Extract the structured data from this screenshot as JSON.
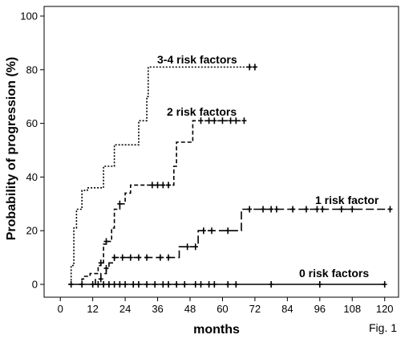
{
  "chart_data": {
    "type": "line",
    "xlabel": "months",
    "ylabel": "Probability of progression (%)",
    "xlim": [
      0,
      126
    ],
    "ylim": [
      0,
      100
    ],
    "x_ticks": [
      0,
      12,
      24,
      36,
      48,
      60,
      72,
      84,
      96,
      108,
      120
    ],
    "y_ticks": [
      0,
      20,
      40,
      60,
      80,
      100
    ],
    "figure_label": "Fig. 1",
    "grid": false,
    "series": [
      {
        "name": "3-4 risk factors",
        "dash": "dotted",
        "steps": [
          [
            3,
            0
          ],
          [
            4,
            7
          ],
          [
            5,
            21
          ],
          [
            6,
            28
          ],
          [
            8,
            35
          ],
          [
            10,
            36
          ],
          [
            15,
            36
          ],
          [
            16,
            44
          ],
          [
            19,
            44
          ],
          [
            20,
            52
          ],
          [
            28,
            52
          ],
          [
            29,
            61
          ],
          [
            31,
            61
          ],
          [
            32,
            70
          ],
          [
            32.5,
            81
          ],
          [
            72,
            81
          ]
        ],
        "censored": [
          [
            70,
            81
          ],
          [
            72,
            81
          ]
        ]
      },
      {
        "name": "2 risk factors",
        "dash": "dashed",
        "steps": [
          [
            7,
            0
          ],
          [
            8,
            2
          ],
          [
            9,
            3
          ],
          [
            11,
            4
          ],
          [
            14,
            7
          ],
          [
            15,
            8
          ],
          [
            16,
            15
          ],
          [
            17,
            16
          ],
          [
            19,
            21
          ],
          [
            20,
            28
          ],
          [
            22,
            30
          ],
          [
            24,
            34
          ],
          [
            26,
            37
          ],
          [
            41,
            37
          ],
          [
            42,
            44
          ],
          [
            43,
            53
          ],
          [
            48,
            53
          ],
          [
            49,
            61
          ],
          [
            68,
            61
          ]
        ],
        "censored": [
          [
            15,
            8
          ],
          [
            17,
            16
          ],
          [
            22,
            30
          ],
          [
            34,
            37
          ],
          [
            36,
            37
          ],
          [
            38,
            37
          ],
          [
            40,
            37
          ],
          [
            52,
            61
          ],
          [
            55,
            61
          ],
          [
            57,
            61
          ],
          [
            60,
            61
          ],
          [
            63,
            61
          ],
          [
            65,
            61
          ],
          [
            68,
            61
          ]
        ]
      },
      {
        "name": "1 risk factor",
        "dash": "longdash",
        "steps": [
          [
            12,
            0
          ],
          [
            13,
            2
          ],
          [
            15,
            4
          ],
          [
            17,
            6
          ],
          [
            18,
            8
          ],
          [
            20,
            10
          ],
          [
            43,
            10
          ],
          [
            44,
            14
          ],
          [
            50,
            14
          ],
          [
            51,
            20
          ],
          [
            66,
            20
          ],
          [
            67,
            28
          ],
          [
            122,
            28
          ]
        ],
        "censored": [
          [
            15,
            2
          ],
          [
            17,
            6
          ],
          [
            20,
            10
          ],
          [
            23,
            10
          ],
          [
            26,
            10
          ],
          [
            29,
            10
          ],
          [
            32,
            10
          ],
          [
            37,
            10
          ],
          [
            40,
            10
          ],
          [
            47,
            14
          ],
          [
            50,
            14
          ],
          [
            53,
            20
          ],
          [
            56,
            20
          ],
          [
            62,
            20
          ],
          [
            70,
            28
          ],
          [
            75,
            28
          ],
          [
            78,
            28
          ],
          [
            80,
            28
          ],
          [
            86,
            28
          ],
          [
            91,
            28
          ],
          [
            95,
            28
          ],
          [
            97,
            28
          ],
          [
            104,
            28
          ],
          [
            108,
            28
          ],
          [
            122,
            28
          ]
        ]
      },
      {
        "name": "0 risk factors",
        "dash": "solid",
        "steps": [
          [
            3,
            0
          ],
          [
            120,
            0
          ]
        ],
        "censored": [
          [
            4,
            0
          ],
          [
            8,
            0
          ],
          [
            12,
            0
          ],
          [
            14,
            0
          ],
          [
            16,
            0
          ],
          [
            18,
            0
          ],
          [
            20,
            0
          ],
          [
            22,
            0
          ],
          [
            24,
            0
          ],
          [
            27,
            0
          ],
          [
            29,
            0
          ],
          [
            32,
            0
          ],
          [
            35,
            0
          ],
          [
            38,
            0
          ],
          [
            40,
            0
          ],
          [
            43,
            0
          ],
          [
            46,
            0
          ],
          [
            50,
            0
          ],
          [
            52,
            0
          ],
          [
            55,
            0
          ],
          [
            57,
            0
          ],
          [
            62,
            0
          ],
          [
            65,
            0
          ],
          [
            78,
            0
          ],
          [
            96,
            0
          ],
          [
            120,
            0
          ]
        ]
      }
    ]
  }
}
